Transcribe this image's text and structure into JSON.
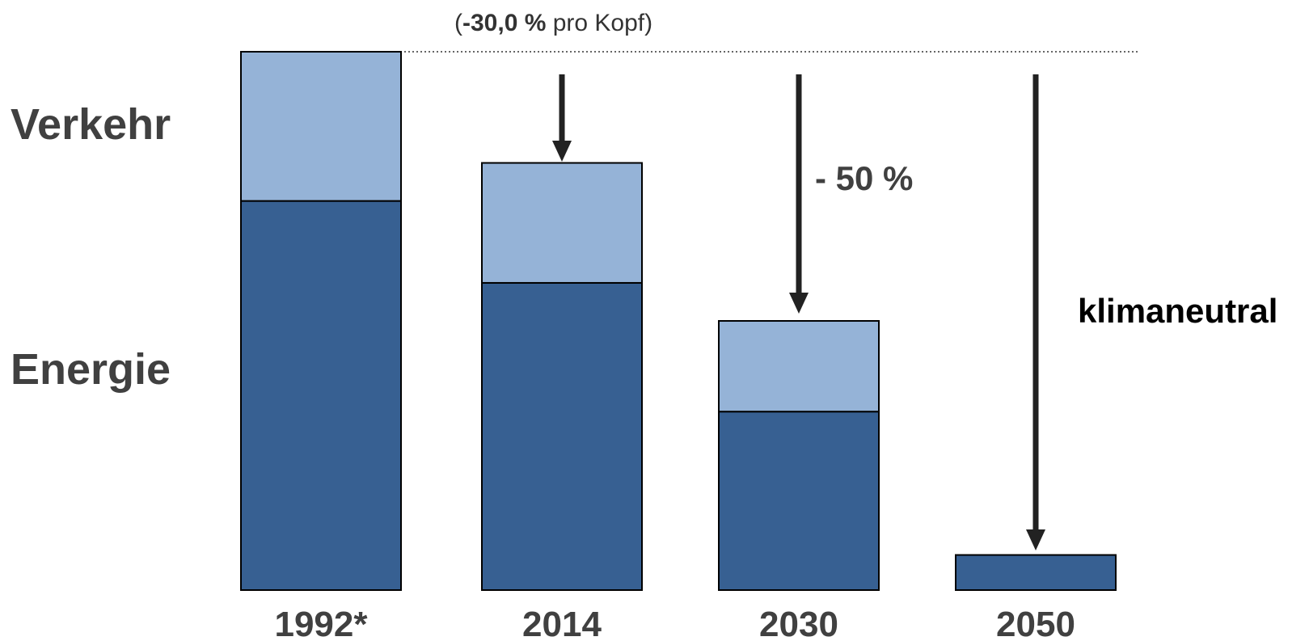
{
  "chart_data": {
    "type": "bar",
    "stacked": true,
    "categories": [
      "1992*",
      "2014",
      "2030",
      "2050"
    ],
    "series": [
      {
        "name": "Energie",
        "color": "#376092",
        "values": [
          66.5,
          52.5,
          30.5,
          6
        ]
      },
      {
        "name": "Verkehr",
        "color": "#95b3d7",
        "values": [
          25.5,
          20.5,
          15.5,
          0
        ]
      }
    ],
    "ylim": [
      0,
      92
    ],
    "reference_value": 92,
    "annotations": {
      "top_note_open": "(",
      "top_note_bold": "-30,0 %",
      "top_note_rest": " pro Kopf)",
      "reduction_2030": "- 50 %",
      "target_2050": "klimaneutral"
    },
    "axis_color": "#404040",
    "arrow_color": "#222222"
  }
}
